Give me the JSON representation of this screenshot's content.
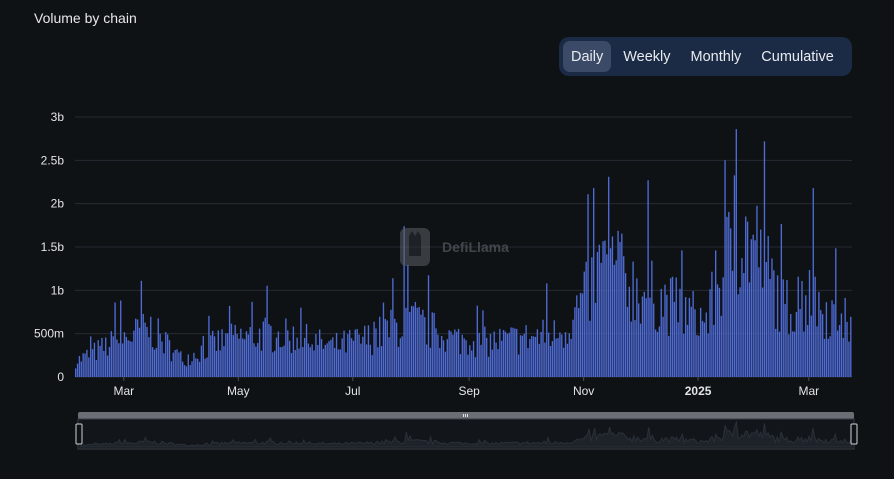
{
  "chart_title": "Volume by chain",
  "toggles": [
    {
      "label": "Daily",
      "active": true
    },
    {
      "label": "Weekly",
      "active": false
    },
    {
      "label": "Monthly",
      "active": false
    },
    {
      "label": "Cumulative",
      "active": false
    }
  ],
  "watermark": "DefiLlama",
  "colors": {
    "bar": "#4e6bd6",
    "background": "#0f1215",
    "toggle_bg": "#1b2a45",
    "toggle_active": "#3b4a66",
    "grid": "#262b33"
  },
  "chart_data": {
    "type": "bar",
    "title": "Volume by chain",
    "start_date": "2024-02-04",
    "end_date": "2025-03-23",
    "ylim": [
      0,
      3000000000
    ],
    "y_ticks": [
      {
        "value": 0,
        "label": "0"
      },
      {
        "value": 500000000,
        "label": "500m"
      },
      {
        "value": 1000000000,
        "label": "1b"
      },
      {
        "value": 1500000000,
        "label": "1.5b"
      },
      {
        "value": 2000000000,
        "label": "2b"
      },
      {
        "value": 2500000000,
        "label": "2.5b"
      },
      {
        "value": 3000000000,
        "label": "3b"
      }
    ],
    "x_ticks": [
      {
        "date": "2024-03-01",
        "label": "Mar",
        "bold": false
      },
      {
        "date": "2024-05-01",
        "label": "May",
        "bold": false
      },
      {
        "date": "2024-07-01",
        "label": "Jul",
        "bold": false
      },
      {
        "date": "2024-09-01",
        "label": "Sep",
        "bold": false
      },
      {
        "date": "2024-11-01",
        "label": "Nov",
        "bold": false
      },
      {
        "date": "2025-01-01",
        "label": "2025",
        "bold": true
      },
      {
        "date": "2025-03-01",
        "label": "Mar",
        "bold": false
      }
    ],
    "grid": true,
    "legend": "none",
    "anchors": [
      {
        "date": "2024-02-04",
        "value": 180000000
      },
      {
        "date": "2024-02-20",
        "value": 350000000
      },
      {
        "date": "2024-03-01",
        "value": 450000000
      },
      {
        "date": "2024-03-15",
        "value": 550000000
      },
      {
        "date": "2024-04-01",
        "value": 200000000
      },
      {
        "date": "2024-04-20",
        "value": 400000000
      },
      {
        "date": "2024-05-15",
        "value": 500000000
      },
      {
        "date": "2024-06-01",
        "value": 450000000
      },
      {
        "date": "2024-06-20",
        "value": 350000000
      },
      {
        "date": "2024-07-10",
        "value": 450000000
      },
      {
        "date": "2024-08-01",
        "value": 650000000
      },
      {
        "date": "2024-08-20",
        "value": 450000000
      },
      {
        "date": "2024-09-10",
        "value": 400000000
      },
      {
        "date": "2024-10-01",
        "value": 450000000
      },
      {
        "date": "2024-10-20",
        "value": 500000000
      },
      {
        "date": "2024-11-01",
        "value": 900000000
      },
      {
        "date": "2024-11-12",
        "value": 1300000000
      },
      {
        "date": "2024-12-01",
        "value": 1000000000
      },
      {
        "date": "2024-12-20",
        "value": 800000000
      },
      {
        "date": "2025-01-05",
        "value": 650000000
      },
      {
        "date": "2025-01-20",
        "value": 1600000000
      },
      {
        "date": "2025-02-01",
        "value": 1500000000
      },
      {
        "date": "2025-02-15",
        "value": 800000000
      },
      {
        "date": "2025-03-01",
        "value": 900000000
      },
      {
        "date": "2025-03-23",
        "value": 600000000
      }
    ],
    "peaks": [
      {
        "date": "2024-02-25",
        "value": 860000000
      },
      {
        "date": "2024-03-10",
        "value": 1110000000
      },
      {
        "date": "2024-04-26",
        "value": 820000000
      },
      {
        "date": "2024-06-03",
        "value": 800000000
      },
      {
        "date": "2024-07-22",
        "value": 1140000000
      },
      {
        "date": "2024-07-28",
        "value": 1740000000
      },
      {
        "date": "2024-10-12",
        "value": 1080000000
      },
      {
        "date": "2024-11-06",
        "value": 2180000000
      },
      {
        "date": "2024-11-14",
        "value": 2310000000
      },
      {
        "date": "2024-12-05",
        "value": 2270000000
      },
      {
        "date": "2025-01-21",
        "value": 2860000000
      },
      {
        "date": "2025-02-05",
        "value": 2720000000
      },
      {
        "date": "2025-03-03",
        "value": 2180000000
      }
    ]
  }
}
